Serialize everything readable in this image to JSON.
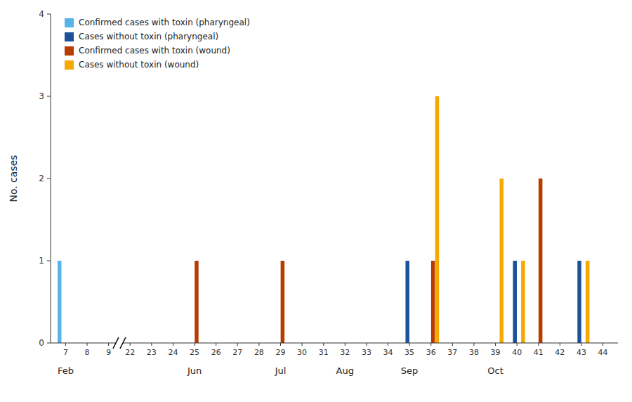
{
  "chart_data": {
    "type": "bar",
    "ylabel": "No. cases",
    "categories": [
      "7",
      "8",
      "9",
      "22",
      "23",
      "24",
      "25",
      "26",
      "27",
      "28",
      "29",
      "30",
      "31",
      "32",
      "33",
      "34",
      "35",
      "36",
      "37",
      "38",
      "39",
      "40",
      "41",
      "42",
      "43",
      "44"
    ],
    "series": [
      {
        "name": "Confirmed cases with toxin (pharyngeal)",
        "color": "#56b4e9",
        "values": [
          1,
          null,
          null,
          null,
          null,
          null,
          null,
          null,
          null,
          null,
          null,
          null,
          null,
          null,
          null,
          null,
          null,
          null,
          null,
          null,
          null,
          null,
          null,
          null,
          null,
          null
        ]
      },
      {
        "name": "Cases without toxin (pharyngeal)",
        "color": "#1b5299",
        "values": [
          null,
          null,
          null,
          null,
          null,
          null,
          null,
          null,
          null,
          null,
          null,
          null,
          null,
          null,
          null,
          null,
          1,
          null,
          null,
          null,
          null,
          1,
          null,
          null,
          1,
          null
        ]
      },
      {
        "name": "Confirmed cases with toxin (wound)",
        "color": "#b83c00",
        "values": [
          null,
          null,
          null,
          null,
          null,
          null,
          1,
          null,
          null,
          null,
          1,
          null,
          null,
          null,
          null,
          null,
          null,
          1,
          null,
          null,
          null,
          null,
          2,
          null,
          null,
          null
        ]
      },
      {
        "name": "Cases without toxin (wound)",
        "color": "#f5a800",
        "values": [
          null,
          null,
          null,
          null,
          null,
          null,
          null,
          null,
          null,
          null,
          null,
          null,
          null,
          null,
          null,
          null,
          null,
          3,
          null,
          null,
          2,
          1,
          null,
          null,
          1,
          null
        ]
      }
    ],
    "annotations": [
      {
        "text": "Feb",
        "category": "7"
      },
      {
        "text": "Jun",
        "category": "25"
      },
      {
        "text": "Jul",
        "category": "29"
      },
      {
        "text": "Aug",
        "category": "32"
      },
      {
        "text": "Sep",
        "category": "35"
      },
      {
        "text": "Oct",
        "category": "39"
      }
    ],
    "axis_break": [
      "9",
      "22"
    ],
    "ylim": [
      0,
      4
    ],
    "yticks": [
      0,
      1,
      2,
      3,
      4
    ],
    "grid": false,
    "legend": "upper left"
  }
}
